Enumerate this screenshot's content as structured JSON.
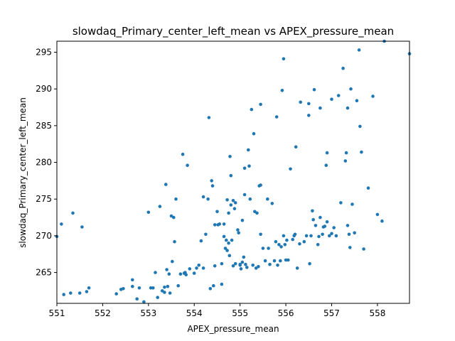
{
  "chart_data": {
    "type": "scatter",
    "title": "slowdaq_Primary_center_left_mean vs APEX_pressure_mean",
    "xlabel": "APEX_pressure_mean",
    "ylabel": "slowdaq_Primary_center_left_mean",
    "xlim": [
      551.0,
      558.7
    ],
    "ylim": [
      260.8,
      296.5
    ],
    "xticks": [
      551,
      552,
      553,
      554,
      555,
      556,
      557,
      558
    ],
    "yticks": [
      265,
      270,
      275,
      280,
      285,
      290,
      295
    ],
    "grid": false,
    "marker_color": "#1f77b4",
    "points": [
      [
        551.0,
        269.9
      ],
      [
        551.1,
        271.6
      ],
      [
        551.15,
        262.0
      ],
      [
        551.3,
        262.2
      ],
      [
        551.35,
        273.1
      ],
      [
        551.5,
        262.2
      ],
      [
        551.55,
        271.2
      ],
      [
        551.65,
        262.4
      ],
      [
        551.7,
        262.9
      ],
      [
        552.3,
        262.1
      ],
      [
        552.4,
        262.7
      ],
      [
        552.45,
        262.8
      ],
      [
        552.65,
        264.0
      ],
      [
        552.65,
        263.1
      ],
      [
        552.75,
        261.4
      ],
      [
        552.8,
        262.9
      ],
      [
        552.9,
        261.0
      ],
      [
        553.0,
        273.2
      ],
      [
        553.05,
        262.9
      ],
      [
        553.1,
        262.9
      ],
      [
        553.15,
        265.0
      ],
      [
        553.2,
        261.6
      ],
      [
        553.25,
        274.0
      ],
      [
        553.3,
        262.5
      ],
      [
        553.35,
        263.0
      ],
      [
        553.35,
        262.3
      ],
      [
        553.38,
        277.0
      ],
      [
        553.4,
        265.4
      ],
      [
        553.42,
        263.1
      ],
      [
        553.45,
        264.8
      ],
      [
        553.47,
        262.2
      ],
      [
        553.5,
        272.7
      ],
      [
        553.52,
        266.5
      ],
      [
        553.55,
        272.5
      ],
      [
        553.57,
        269.2
      ],
      [
        553.6,
        275.0
      ],
      [
        553.65,
        263.2
      ],
      [
        553.7,
        264.8
      ],
      [
        553.75,
        281.1
      ],
      [
        553.78,
        264.9
      ],
      [
        553.8,
        265.0
      ],
      [
        553.82,
        264.7
      ],
      [
        553.85,
        279.6
      ],
      [
        553.9,
        265.5
      ],
      [
        554.0,
        264.9
      ],
      [
        554.05,
        265.6
      ],
      [
        554.1,
        266.0
      ],
      [
        554.15,
        269.3
      ],
      [
        554.2,
        265.6
      ],
      [
        554.2,
        275.3
      ],
      [
        554.25,
        270.2
      ],
      [
        554.3,
        275.0
      ],
      [
        554.32,
        286.1
      ],
      [
        554.35,
        262.8
      ],
      [
        554.38,
        277.5
      ],
      [
        554.4,
        276.8
      ],
      [
        554.42,
        263.2
      ],
      [
        554.45,
        265.9
      ],
      [
        554.45,
        271.5
      ],
      [
        554.5,
        273.3
      ],
      [
        554.52,
        271.5
      ],
      [
        554.55,
        271.6
      ],
      [
        554.6,
        263.4
      ],
      [
        554.6,
        266.2
      ],
      [
        554.65,
        269.9
      ],
      [
        554.65,
        271.6
      ],
      [
        554.68,
        268.3
      ],
      [
        554.7,
        269.4
      ],
      [
        554.72,
        274.9
      ],
      [
        554.72,
        268.0
      ],
      [
        554.75,
        273.1
      ],
      [
        554.75,
        269.0
      ],
      [
        554.77,
        267.3
      ],
      [
        554.78,
        280.8
      ],
      [
        554.8,
        278.2
      ],
      [
        554.8,
        274.2
      ],
      [
        554.82,
        269.4
      ],
      [
        554.85,
        265.9
      ],
      [
        554.85,
        274.8
      ],
      [
        554.88,
        273.7
      ],
      [
        554.9,
        266.2
      ],
      [
        554.9,
        274.5
      ],
      [
        554.95,
        270.8
      ],
      [
        554.97,
        270.4
      ],
      [
        555.0,
        266.1
      ],
      [
        555.0,
        266.0
      ],
      [
        555.02,
        265.5
      ],
      [
        555.05,
        266.4
      ],
      [
        555.05,
        272.1
      ],
      [
        555.08,
        267.1
      ],
      [
        555.1,
        279.2
      ],
      [
        555.1,
        275.6
      ],
      [
        555.12,
        266.1
      ],
      [
        555.15,
        265.7
      ],
      [
        555.18,
        281.7
      ],
      [
        555.2,
        279.5
      ],
      [
        555.22,
        275.0
      ],
      [
        555.25,
        287.2
      ],
      [
        555.28,
        266.0
      ],
      [
        555.3,
        283.9
      ],
      [
        555.32,
        273.3
      ],
      [
        555.35,
        265.6
      ],
      [
        555.37,
        273.1
      ],
      [
        555.4,
        265.8
      ],
      [
        555.42,
        276.8
      ],
      [
        555.45,
        276.9
      ],
      [
        555.45,
        270.2
      ],
      [
        555.45,
        287.9
      ],
      [
        555.5,
        268.3
      ],
      [
        555.55,
        266.6
      ],
      [
        555.6,
        275.0
      ],
      [
        555.62,
        268.3
      ],
      [
        555.65,
        266.1
      ],
      [
        555.7,
        274.4
      ],
      [
        555.75,
        266.6
      ],
      [
        555.78,
        269.2
      ],
      [
        555.8,
        286.2
      ],
      [
        555.82,
        266.0
      ],
      [
        555.85,
        268.8
      ],
      [
        555.88,
        266.6
      ],
      [
        555.9,
        268.5
      ],
      [
        555.92,
        289.8
      ],
      [
        555.95,
        294.1
      ],
      [
        555.95,
        270.0
      ],
      [
        555.98,
        268.8
      ],
      [
        556.0,
        266.7
      ],
      [
        556.02,
        269.4
      ],
      [
        556.05,
        266.7
      ],
      [
        556.1,
        279.1
      ],
      [
        556.15,
        269.5
      ],
      [
        556.18,
        270.0
      ],
      [
        556.2,
        270.2
      ],
      [
        556.22,
        282.1
      ],
      [
        556.25,
        265.6
      ],
      [
        556.3,
        268.9
      ],
      [
        556.32,
        288.2
      ],
      [
        556.4,
        269.2
      ],
      [
        556.45,
        270.0
      ],
      [
        556.5,
        288.0
      ],
      [
        556.5,
        286.4
      ],
      [
        556.52,
        266.2
      ],
      [
        556.55,
        270.0
      ],
      [
        556.58,
        273.4
      ],
      [
        556.6,
        272.2
      ],
      [
        556.62,
        289.9
      ],
      [
        556.65,
        271.4
      ],
      [
        556.7,
        268.8
      ],
      [
        556.72,
        269.9
      ],
      [
        556.75,
        287.4
      ],
      [
        556.75,
        272.5
      ],
      [
        556.8,
        270.2
      ],
      [
        556.82,
        271.2
      ],
      [
        556.85,
        271.3
      ],
      [
        556.88,
        279.6
      ],
      [
        556.9,
        281.3
      ],
      [
        556.9,
        271.9
      ],
      [
        556.95,
        270.0
      ],
      [
        557.0,
        288.6
      ],
      [
        557.0,
        270.3
      ],
      [
        557.05,
        271.1
      ],
      [
        557.1,
        270.0
      ],
      [
        557.15,
        289.1
      ],
      [
        557.2,
        274.5
      ],
      [
        557.25,
        292.8
      ],
      [
        557.3,
        280.2
      ],
      [
        557.32,
        281.3
      ],
      [
        557.35,
        287.4
      ],
      [
        557.35,
        271.4
      ],
      [
        557.38,
        270.2
      ],
      [
        557.4,
        268.4
      ],
      [
        557.42,
        290.0
      ],
      [
        557.45,
        274.3
      ],
      [
        557.5,
        270.4
      ],
      [
        557.55,
        288.4
      ],
      [
        557.6,
        295.3
      ],
      [
        557.62,
        284.9
      ],
      [
        557.65,
        281.4
      ],
      [
        557.7,
        268.2
      ],
      [
        557.8,
        276.5
      ],
      [
        557.9,
        289.0
      ],
      [
        558.0,
        272.9
      ],
      [
        558.1,
        272.0
      ],
      [
        558.15,
        296.5
      ],
      [
        558.7,
        294.8
      ]
    ]
  }
}
